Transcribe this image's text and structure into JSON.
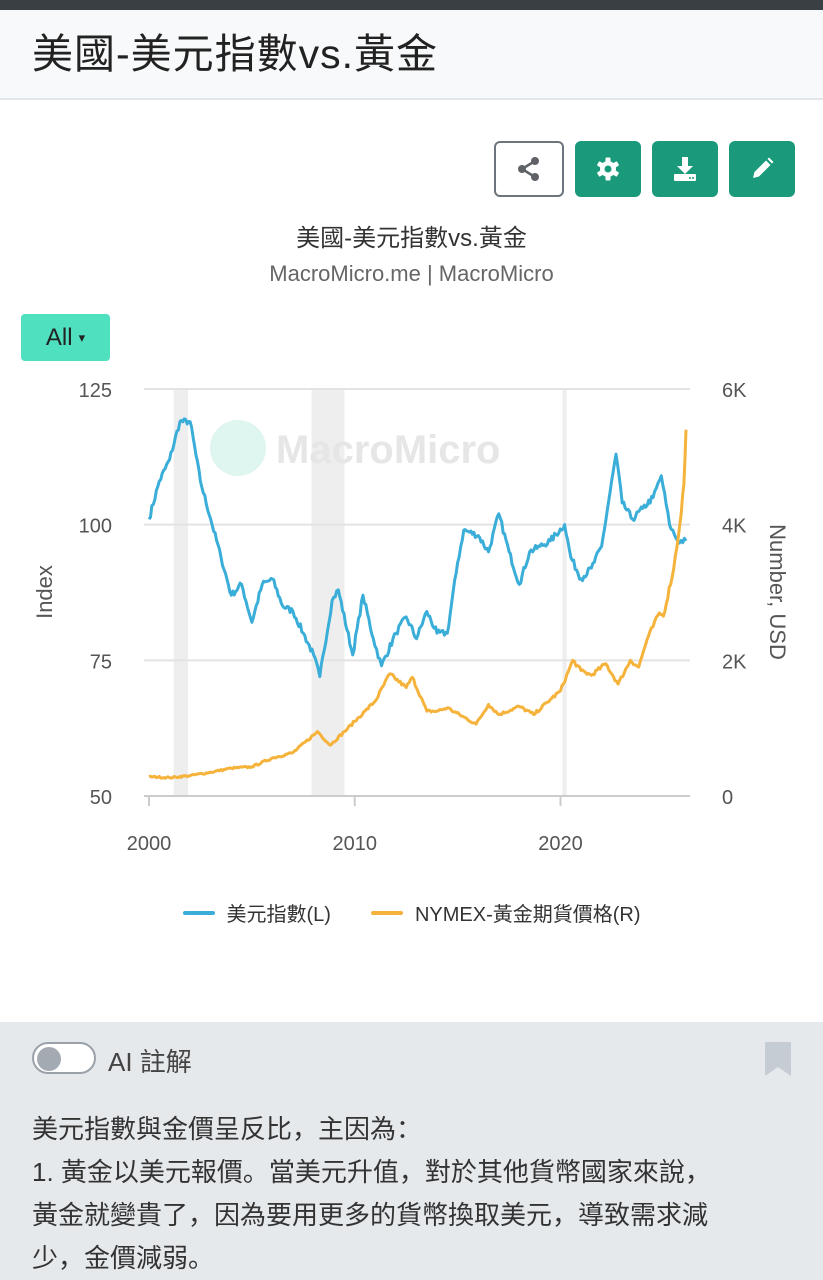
{
  "page_title": "美國-美元指數vs.黃金",
  "toolbar": {
    "icons": [
      "share-icon",
      "gear-icon",
      "download-icon",
      "pencil-icon"
    ]
  },
  "range_selector": {
    "label": "All",
    "caret": "▾"
  },
  "colors": {
    "accent": "#1a9a7a",
    "range": "#4fe0c0",
    "dxy": "#3aaed8",
    "gold": "#f5b33c"
  },
  "chart_data": {
    "type": "line",
    "title": "美國-美元指數vs.黃金",
    "subtitle": "MacroMicro.me | MacroMicro",
    "watermark": "MacroMicro",
    "x_ticks": [
      "2000",
      "2010",
      "2020"
    ],
    "xlim": [
      2000,
      2026.1
    ],
    "y_left": {
      "label": "Index",
      "ticks": [
        "125",
        "100",
        "75",
        "50"
      ],
      "range": [
        50,
        125
      ]
    },
    "y_right": {
      "label": "Number, USD",
      "ticks": [
        "6K",
        "4K",
        "2K",
        "0"
      ],
      "range": [
        0,
        6000
      ]
    },
    "grid": true,
    "legend_position": "bottom",
    "shaded_periods": [
      [
        2001.2,
        2001.9
      ],
      [
        2007.9,
        2009.5
      ],
      [
        2020.1,
        2020.3
      ]
    ],
    "series": [
      {
        "name": "美元指數(L)",
        "axis": "left",
        "x": [
          2000.0,
          2000.5,
          2001.0,
          2001.5,
          2002.0,
          2002.5,
          2003.0,
          2003.5,
          2004.0,
          2004.5,
          2005.0,
          2005.5,
          2006.0,
          2006.5,
          2007.0,
          2007.5,
          2008.0,
          2008.3,
          2008.9,
          2009.2,
          2009.9,
          2010.4,
          2010.9,
          2011.3,
          2012.0,
          2012.5,
          2013.0,
          2013.5,
          2014.0,
          2014.5,
          2015.0,
          2015.3,
          2016.0,
          2016.5,
          2017.0,
          2017.5,
          2018.0,
          2018.5,
          2019.0,
          2019.5,
          2020.2,
          2020.5,
          2021.0,
          2021.5,
          2022.0,
          2022.7,
          2023.0,
          2023.5,
          2024.0,
          2024.5,
          2024.9,
          2025.3,
          2025.7,
          2026.1
        ],
        "y": [
          101,
          108,
          112,
          119,
          119,
          108,
          101,
          94,
          87,
          89,
          82,
          89,
          90,
          85,
          84,
          80,
          76,
          72,
          86,
          88,
          76,
          87,
          79,
          74,
          80,
          83,
          79,
          84,
          80,
          80,
          93,
          99,
          98,
          95,
          102,
          95,
          89,
          95,
          96,
          97,
          100,
          94,
          90,
          92,
          96,
          113,
          104,
          101,
          103,
          105,
          109,
          100,
          97,
          97
        ]
      },
      {
        "name": "NYMEX-黃金期貨價格(R)",
        "axis": "right",
        "x": [
          2000,
          2001,
          2002,
          2003,
          2004,
          2005,
          2006,
          2007,
          2008.2,
          2008.8,
          2009.5,
          2010,
          2010.5,
          2011,
          2011.7,
          2012.5,
          2012.8,
          2013.5,
          2014,
          2014.5,
          2015.9,
          2016.5,
          2017,
          2018,
          2018.7,
          2019.5,
          2020,
          2020.6,
          2021,
          2021.5,
          2022.2,
          2022.8,
          2023.4,
          2023.8,
          2024.2,
          2024.8,
          2025.0,
          2025.5,
          2025.8,
          2026.0,
          2026.1
        ],
        "y": [
          285,
          270,
          300,
          350,
          410,
          430,
          560,
          640,
          950,
          750,
          950,
          1100,
          1250,
          1400,
          1800,
          1600,
          1750,
          1250,
          1250,
          1300,
          1060,
          1350,
          1200,
          1320,
          1200,
          1420,
          1550,
          2000,
          1850,
          1780,
          1950,
          1650,
          2000,
          1900,
          2300,
          2700,
          2650,
          3350,
          4000,
          4600,
          5400
        ]
      }
    ]
  },
  "ai_panel": {
    "toggle_label": "AI 註解",
    "lines": [
      "美元指數與金價呈反比，主因為：",
      "1. 黃金以美元報價。當美元升值，對於其他貨幣國家來說，",
      "黃金就變貴了，因為要用更多的貨幣換取美元，導致需求減",
      "少，金價減弱。"
    ]
  }
}
